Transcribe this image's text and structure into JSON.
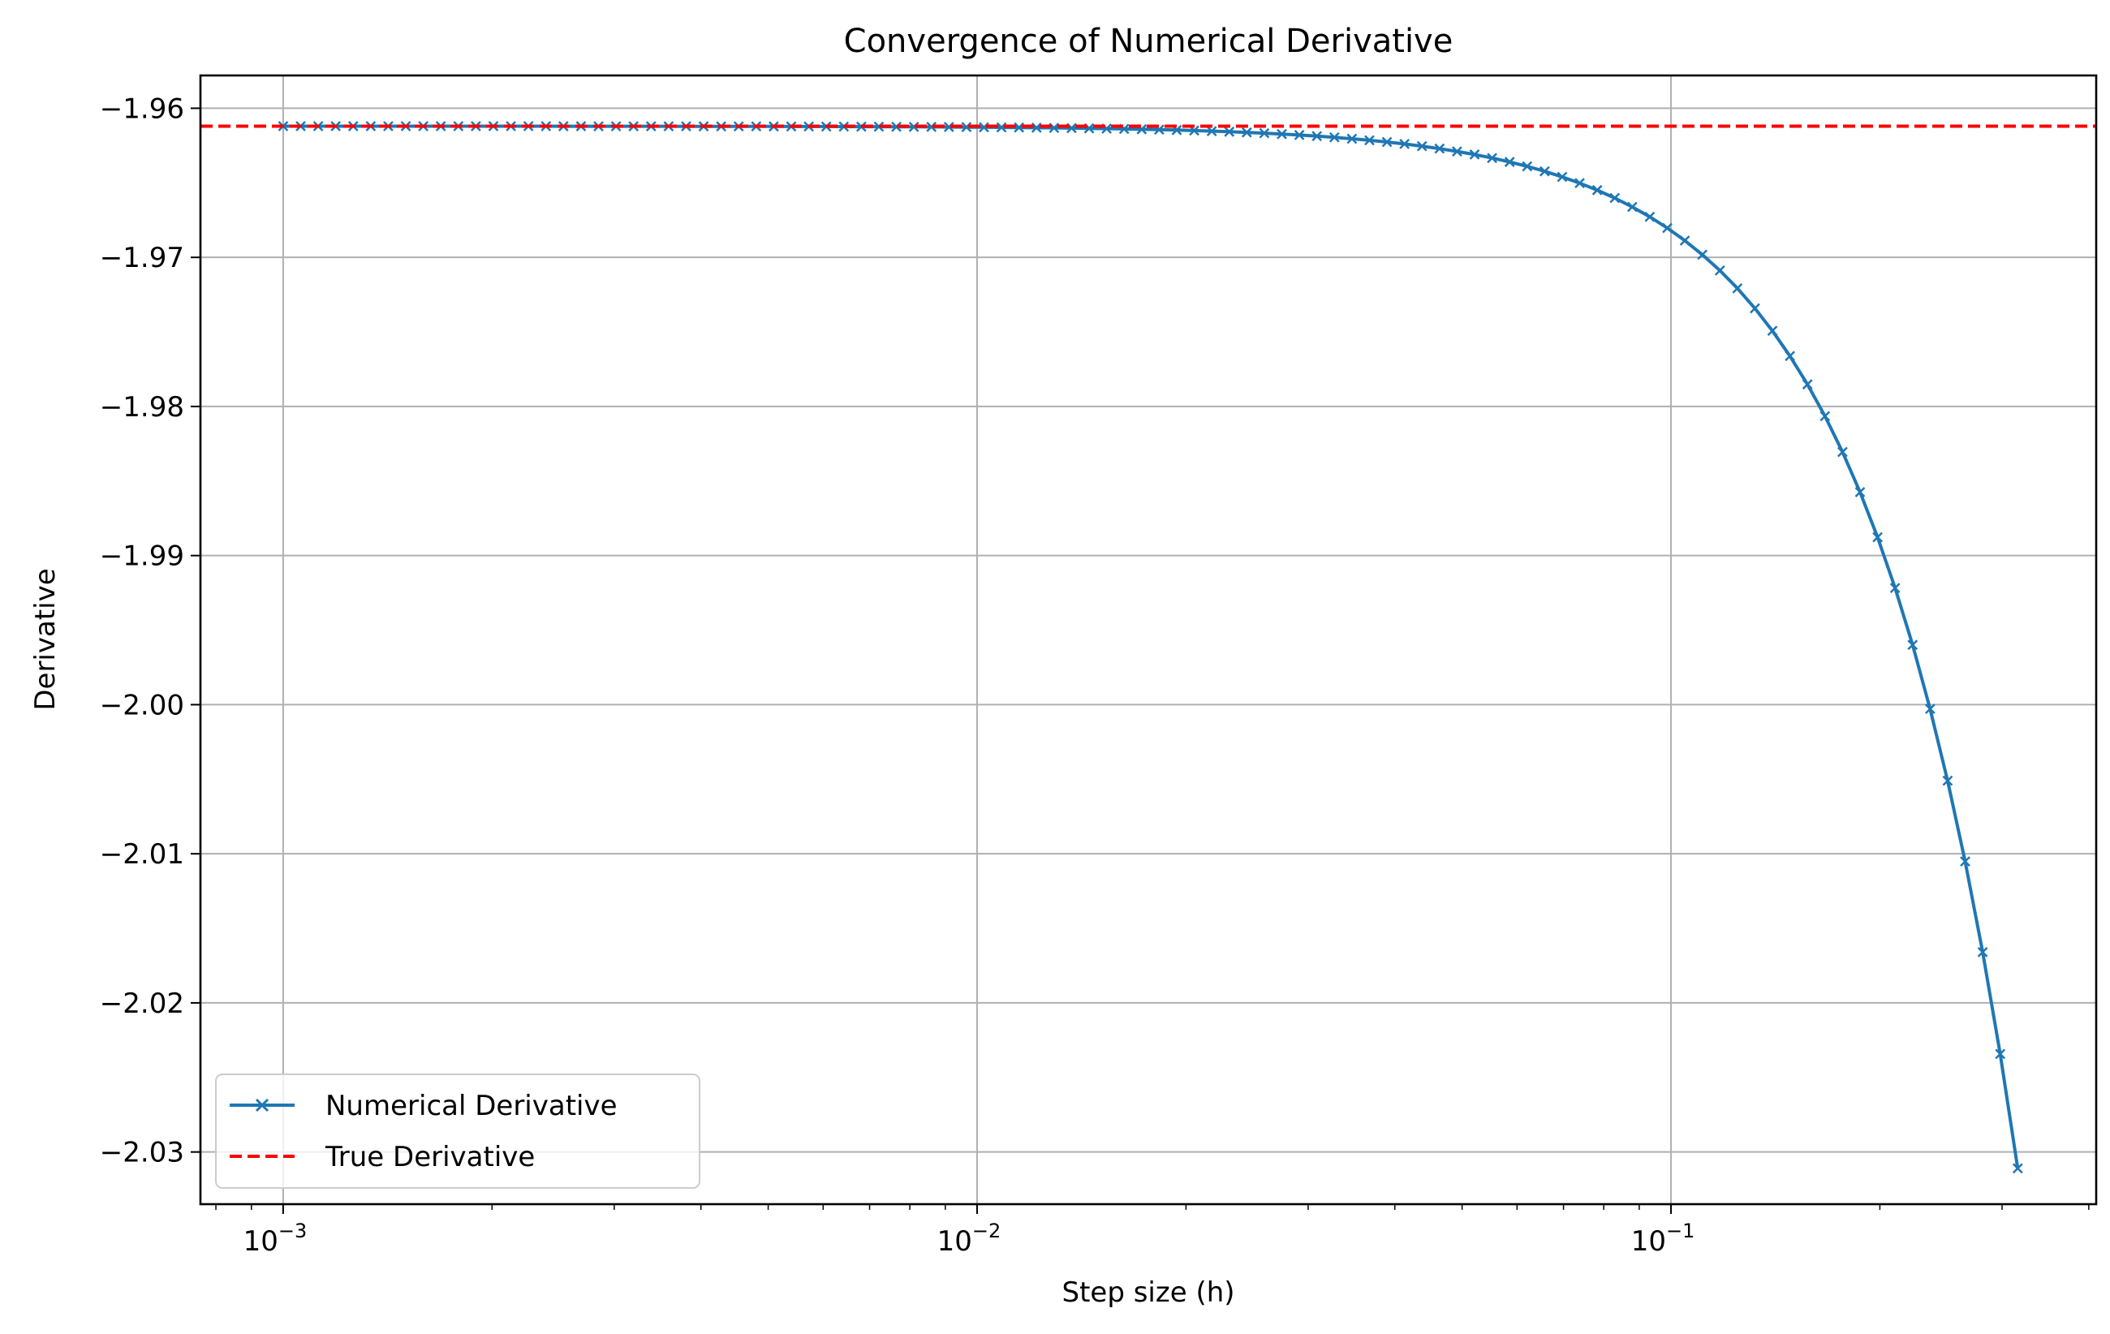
{
  "chart_data": {
    "type": "line",
    "title": "Convergence of Numerical Derivative",
    "xlabel": "Step size (h)",
    "ylabel": "Derivative",
    "xscale": "log",
    "xlim": [
      0.00076,
      0.41
    ],
    "ylim": [
      -2.0335,
      -1.9578
    ],
    "x_ticks": [
      {
        "value": 0.001,
        "base": "10",
        "exp": "−3"
      },
      {
        "value": 0.01,
        "base": "10",
        "exp": "−2"
      },
      {
        "value": 0.1,
        "base": "10",
        "exp": "−1"
      }
    ],
    "y_ticks": [
      {
        "value": -1.96,
        "label": "−1.96"
      },
      {
        "value": -1.97,
        "label": "−1.97"
      },
      {
        "value": -1.98,
        "label": "−1.98"
      },
      {
        "value": -1.99,
        "label": "−1.99"
      },
      {
        "value": -2.0,
        "label": "−2.00"
      },
      {
        "value": -2.01,
        "label": "−2.01"
      },
      {
        "value": -2.02,
        "label": "−2.02"
      },
      {
        "value": -2.03,
        "label": "−2.03"
      }
    ],
    "grid": true,
    "legend_position": "lower-left",
    "series": [
      {
        "name": "Numerical Derivative",
        "style": "solid",
        "marker": "x",
        "color": "#1f77b4",
        "h_min": 0.001,
        "h_max": 0.316,
        "num_points": 100,
        "true_value": -1.9612,
        "error_coefficient": -0.7
      },
      {
        "name": "True Derivative",
        "style": "dashed",
        "color": "#ff0000",
        "y": -1.9612
      }
    ]
  }
}
